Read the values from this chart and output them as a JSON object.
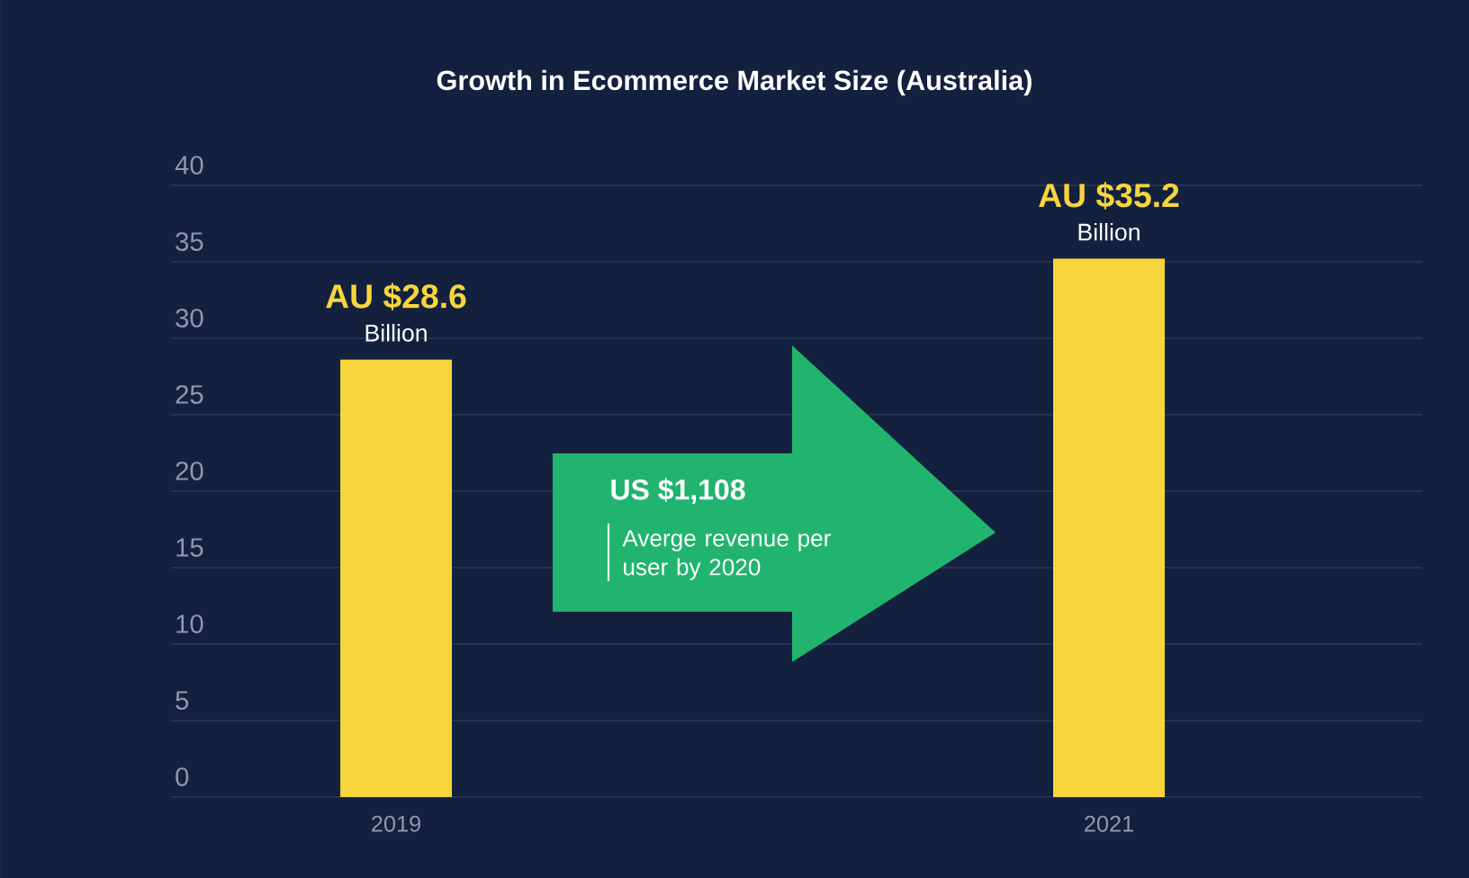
{
  "chart_data": {
    "type": "bar",
    "title": "Growth in Ecommerce Market Size (Australia)",
    "categories": [
      "2019",
      "2021"
    ],
    "values": [
      28.6,
      35.2
    ],
    "color": "#f6d53d",
    "ylim": [
      0,
      40
    ],
    "yticks": [
      0,
      5,
      10,
      15,
      20,
      25,
      30,
      35,
      40
    ],
    "grid": "y",
    "value_labels": [
      "AU $28.6",
      "AU $35.2"
    ],
    "annotations": [
      {
        "text": "Billion",
        "x": "2019",
        "y": 28.6
      },
      {
        "text": "Billion",
        "x": "2021",
        "y": 35.2
      },
      "US $1,108",
      "Averge revenue per user by 2020"
    ]
  }
}
